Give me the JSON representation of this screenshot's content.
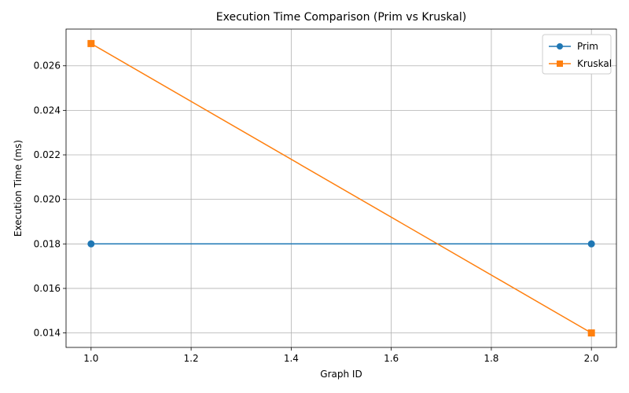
{
  "chart_data": {
    "type": "line",
    "title": "Execution Time Comparison (Prim vs Kruskal)",
    "xlabel": "Graph ID",
    "ylabel": "Execution Time (ms)",
    "x": [
      1.0,
      2.0
    ],
    "xlim": [
      0.95,
      2.05
    ],
    "ylim": [
      0.01335,
      0.02765
    ],
    "xticks": [
      "1.0",
      "1.2",
      "1.4",
      "1.6",
      "1.8",
      "2.0"
    ],
    "yticks": [
      "0.014",
      "0.016",
      "0.018",
      "0.020",
      "0.022",
      "0.024",
      "0.026"
    ],
    "grid": true,
    "legend_position": "top-right",
    "series": [
      {
        "name": "Prim",
        "values": [
          0.018,
          0.018
        ],
        "color": "#1f77b4",
        "marker": "circle"
      },
      {
        "name": "Kruskal",
        "values": [
          0.027,
          0.014
        ],
        "color": "#ff7f0e",
        "marker": "square"
      }
    ]
  }
}
